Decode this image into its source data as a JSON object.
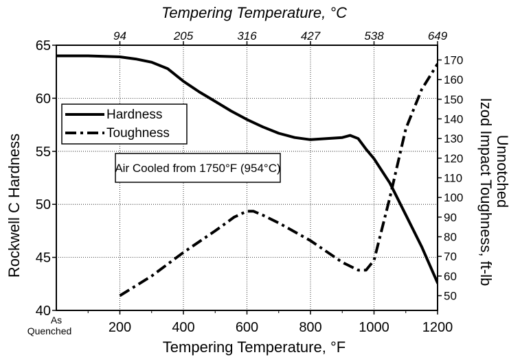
{
  "chart_data": {
    "type": "line",
    "title_top_axis": "Tempering Temperature, °C",
    "xlabel": "Tempering Temperature, °F",
    "ylabel_left": "Rockwell C Hardness",
    "ylabel_right": "Izod Impact Toughness, ft-lb",
    "ylabel_right_secondary": "Unnotched",
    "x_range": [
      0,
      1200
    ],
    "x_ticks": [
      {
        "value": 200,
        "label": "200"
      },
      {
        "value": 400,
        "label": "400"
      },
      {
        "value": 600,
        "label": "600"
      },
      {
        "value": 800,
        "label": "800"
      },
      {
        "value": 1000,
        "label": "1000"
      },
      {
        "value": 1200,
        "label": "1200"
      }
    ],
    "x_zero_label": [
      "As",
      "Quenched"
    ],
    "top_ticks": [
      {
        "value": 200,
        "label": "94"
      },
      {
        "value": 400,
        "label": "205"
      },
      {
        "value": 600,
        "label": "316"
      },
      {
        "value": 800,
        "label": "427"
      },
      {
        "value": 1000,
        "label": "538"
      },
      {
        "value": 1200,
        "label": "649"
      }
    ],
    "y_left_range": [
      40,
      65
    ],
    "y_left_ticks": [
      "40",
      "45",
      "50",
      "55",
      "60",
      "65"
    ],
    "y_right_range": [
      42.5,
      177.5
    ],
    "y_right_ticks": [
      "50",
      "60",
      "70",
      "80",
      "90",
      "100",
      "110",
      "120",
      "130",
      "140",
      "150",
      "160",
      "170"
    ],
    "grid": true,
    "legend_position": "top-left",
    "annotation": "Air Cooled from 1750°F (954°C)",
    "series": [
      {
        "name": "Hardness",
        "axis": "left",
        "line_style": "solid",
        "x": [
          0,
          100,
          200,
          250,
          300,
          350,
          400,
          450,
          500,
          550,
          600,
          650,
          700,
          750,
          800,
          850,
          900,
          925,
          950,
          975,
          1000,
          1050,
          1100,
          1150,
          1200
        ],
        "y": [
          64.0,
          64.0,
          63.9,
          63.7,
          63.4,
          62.8,
          61.6,
          60.6,
          59.7,
          58.8,
          58.0,
          57.3,
          56.7,
          56.3,
          56.1,
          56.2,
          56.3,
          56.5,
          56.2,
          55.2,
          54.3,
          52.0,
          49.0,
          46.0,
          42.6
        ]
      },
      {
        "name": "Toughness",
        "axis": "right",
        "line_style": "dash-dot",
        "x": [
          200,
          300,
          400,
          500,
          560,
          600,
          620,
          650,
          700,
          800,
          900,
          950,
          975,
          1000,
          1050,
          1100,
          1150,
          1200
        ],
        "y": [
          50,
          60,
          72,
          83,
          90,
          93,
          93,
          91,
          87,
          78,
          67,
          63,
          63,
          68,
          100,
          135,
          155,
          168
        ]
      }
    ]
  }
}
